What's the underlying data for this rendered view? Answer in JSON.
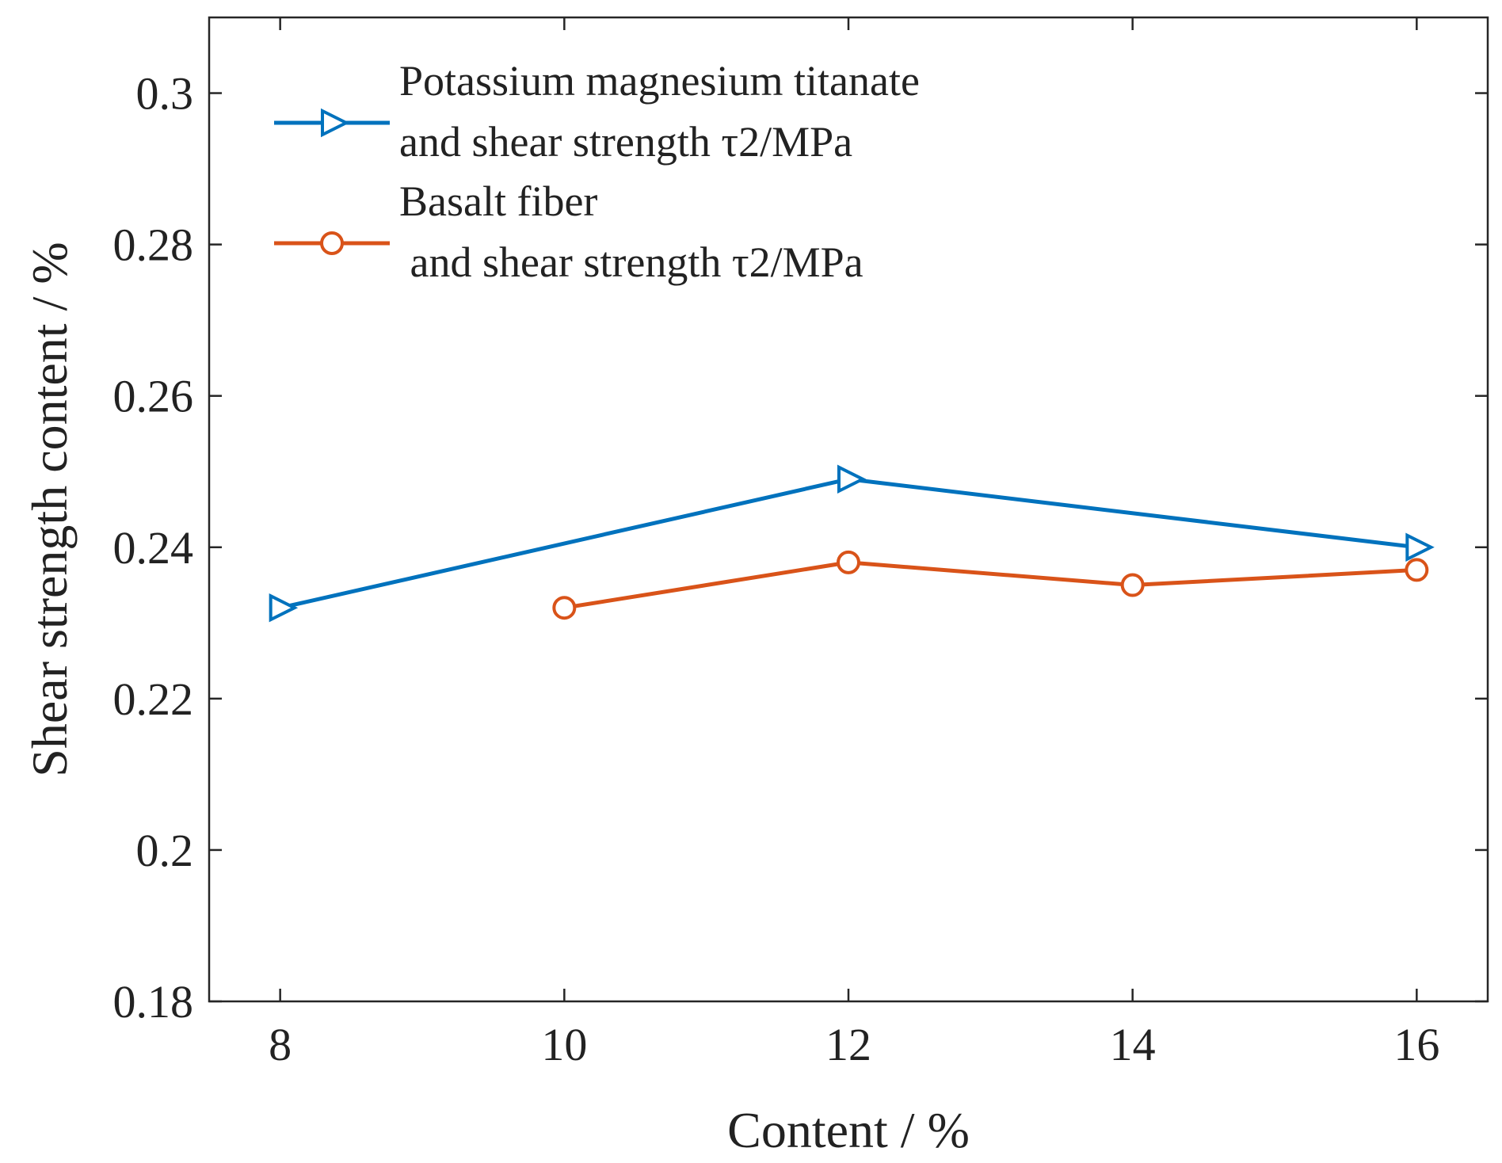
{
  "chart_data": {
    "type": "line",
    "xlabel": "Content / %",
    "ylabel": "Shear strength content / %",
    "xlim": [
      7.5,
      16.5
    ],
    "ylim": [
      0.18,
      0.31
    ],
    "x_ticks": [
      8,
      10,
      12,
      14,
      16
    ],
    "x_tick_labels": [
      "8",
      "10",
      "12",
      "14",
      "16"
    ],
    "y_ticks": [
      0.18,
      0.2,
      0.22,
      0.24,
      0.26,
      0.28,
      0.3
    ],
    "y_tick_labels": [
      "0.18",
      "0.2",
      "0.22",
      "0.24",
      "0.26",
      "0.28",
      "0.3"
    ],
    "grid": false,
    "legend_position": "top-left",
    "series": [
      {
        "name": "Potassium magnesium titanate and shear strength τ2/MPa",
        "legend_lines": [
          "Potassium magnesium titanate",
          "and shear strength τ2/MPa"
        ],
        "color": "#0072BD",
        "marker": "triangle-right",
        "x": [
          8,
          12,
          16
        ],
        "y": [
          0.232,
          0.249,
          0.24
        ]
      },
      {
        "name": "Basalt fiber and shear strength τ2/MPa",
        "legend_lines": [
          "Basalt fiber",
          " and shear strength τ2/MPa"
        ],
        "color": "#D95319",
        "marker": "circle",
        "x": [
          10,
          12,
          14,
          16
        ],
        "y": [
          0.232,
          0.238,
          0.235,
          0.237
        ]
      }
    ]
  }
}
